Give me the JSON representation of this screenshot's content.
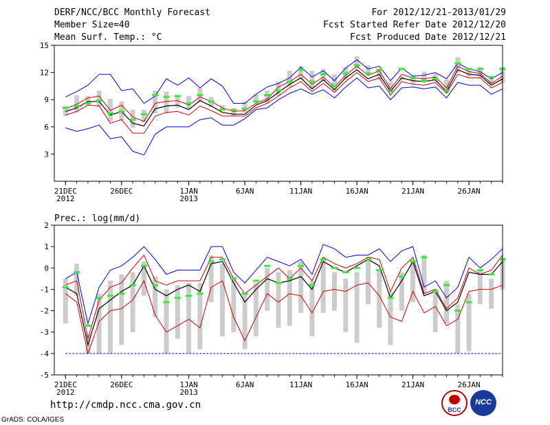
{
  "header": {
    "title": "DERF/NCC/BCC Monthly Forecast",
    "member_size": "Member Size=40",
    "variable": "Mean Surf. Temp.: °C",
    "forecast_period": "For 2012/12/21-2013/01/29",
    "fcst_started": "Fcst Started Refer Date 2012/12/20",
    "fcst_produced": "Fcst Produced Date 2012/12/21"
  },
  "footer": {
    "url": "http://cmdp.ncc.cma.gov.cn",
    "grads": "GrADS: COLA/IGES",
    "logo_bcc": "BCC",
    "logo_ncc": "NCC"
  },
  "colors": {
    "mean": "#000000",
    "envelope": "#0000dd",
    "spread": "#d00000",
    "observed": "#33ee33",
    "bars": "#cccccc",
    "baseline": "#0000aa"
  },
  "chart_data": [
    {
      "type": "line",
      "title": "Mean Surf. Temp.: °C",
      "x_tick_labels": [
        "21DEC\n2012",
        "26DEC",
        "1JAN\n2013",
        "6JAN",
        "11JAN",
        "16JAN",
        "21JAN",
        "26JAN"
      ],
      "x_tick_days": [
        1,
        6,
        12,
        17,
        22,
        27,
        32,
        37
      ],
      "xlim": [
        0,
        40
      ],
      "ylim": [
        0,
        15
      ],
      "y_ticks": [
        3,
        6,
        9,
        12,
        15
      ],
      "days": [
        1,
        2,
        3,
        4,
        5,
        6,
        7,
        8,
        9,
        10,
        11,
        12,
        13,
        14,
        15,
        16,
        17,
        18,
        19,
        20,
        21,
        22,
        23,
        24,
        25,
        26,
        27,
        28,
        29,
        30,
        31,
        32,
        33,
        34,
        35,
        36,
        37,
        38,
        39,
        40
      ],
      "series": [
        {
          "name": "ensemble max",
          "color": "#0000dd",
          "values": [
            9.3,
            9.9,
            10.6,
            11.8,
            11.8,
            10.0,
            10.2,
            8.6,
            9.4,
            11.3,
            10.6,
            11.4,
            10.3,
            11.3,
            10.5,
            8.6,
            8.6,
            9.6,
            10.4,
            10.8,
            11.4,
            12.6,
            11.5,
            12.2,
            11.1,
            12.5,
            13.4,
            12.4,
            12.7,
            11.1,
            12.5,
            11.6,
            11.7,
            12.0,
            11.3,
            13.0,
            12.4,
            12.1,
            11.3,
            12.0
          ]
        },
        {
          "name": "ensemble min",
          "color": "#0000dd",
          "values": [
            5.9,
            5.5,
            5.8,
            6.2,
            4.7,
            4.9,
            3.3,
            2.9,
            5.2,
            6.0,
            6.0,
            6.0,
            6.8,
            7.0,
            6.2,
            6.2,
            6.9,
            7.9,
            8.1,
            9.0,
            9.7,
            10.2,
            9.6,
            10.1,
            9.2,
            10.4,
            11.4,
            10.3,
            10.5,
            9.0,
            10.3,
            10.4,
            10.2,
            10.4,
            9.2,
            10.9,
            10.6,
            10.6,
            9.6,
            10.2
          ]
        },
        {
          "name": "spread upper",
          "color": "#d00000",
          "values": [
            8.0,
            8.5,
            9.2,
            9.4,
            7.8,
            8.4,
            7.1,
            6.6,
            8.6,
            8.8,
            8.9,
            8.4,
            9.3,
            8.8,
            8.1,
            7.7,
            7.8,
            8.6,
            9.1,
            10.4,
            11.0,
            11.8,
            10.7,
            11.5,
            10.4,
            11.7,
            12.7,
            11.7,
            12.2,
            10.2,
            11.8,
            11.4,
            11.3,
            11.5,
            10.3,
            12.7,
            12.1,
            11.9,
            10.8,
            11.6
          ]
        },
        {
          "name": "ensemble mean",
          "color": "#000000",
          "values": [
            7.7,
            8.1,
            8.8,
            8.8,
            7.3,
            7.7,
            6.4,
            6.1,
            8.0,
            8.3,
            8.4,
            7.9,
            8.9,
            8.3,
            7.6,
            7.4,
            7.4,
            8.4,
            8.9,
            9.8,
            10.7,
            11.4,
            10.2,
            11.2,
            10.1,
            11.4,
            12.3,
            11.3,
            11.8,
            9.9,
            11.4,
            11.1,
            11.0,
            11.2,
            9.9,
            12.3,
            11.8,
            11.7,
            10.6,
            11.3
          ]
        },
        {
          "name": "spread lower",
          "color": "#d00000",
          "values": [
            7.3,
            7.7,
            8.4,
            8.3,
            6.4,
            6.8,
            5.3,
            5.3,
            7.2,
            7.6,
            7.7,
            7.3,
            8.3,
            7.8,
            7.2,
            7.2,
            7.2,
            8.1,
            8.6,
            9.4,
            10.3,
            11.0,
            9.9,
            10.8,
            9.8,
            11.0,
            12.0,
            11.0,
            11.4,
            9.5,
            11.0,
            10.7,
            10.6,
            10.9,
            9.7,
            11.8,
            11.4,
            11.4,
            10.3,
            10.9
          ]
        },
        {
          "name": "observed",
          "color": "#33ee33",
          "values": [
            8.1,
            8.3,
            8.6,
            8.9,
            7.5,
            7.7,
            6.8,
            7.4,
            9.5,
            9.3,
            9.4,
            8.6,
            9.5,
            8.8,
            7.9,
            7.9,
            8.0,
            8.8,
            9.5,
            10.0,
            11.0,
            12.3,
            11.0,
            11.8,
            10.5,
            11.9,
            12.8,
            11.9,
            12.3,
            9.9,
            12.4,
            11.4,
            11.1,
            11.3,
            10.0,
            13.0,
            12.4,
            12.4,
            11.5,
            12.4
          ]
        }
      ],
      "obs_bars": [
        [
          7.2,
          8.3
        ],
        [
          7.6,
          9.5
        ],
        [
          8.4,
          9.4
        ],
        [
          8.2,
          10.0
        ],
        [
          6.6,
          9.1
        ],
        [
          6.7,
          8.8
        ],
        [
          5.9,
          7.9
        ],
        [
          6.5,
          7.9
        ],
        [
          7.5,
          10.0
        ],
        [
          7.5,
          9.9
        ],
        [
          8.1,
          9.4
        ],
        [
          8.0,
          9.4
        ],
        [
          8.8,
          10.3
        ],
        [
          8.2,
          9.3
        ],
        [
          7.8,
          8.4
        ],
        [
          7.2,
          8.0
        ],
        [
          7.6,
          8.8
        ],
        [
          8.7,
          9.6
        ],
        [
          8.6,
          10.0
        ],
        [
          9.4,
          11.0
        ],
        [
          10.4,
          12.2
        ],
        [
          11.2,
          12.7
        ],
        [
          10.3,
          12.2
        ],
        [
          11.0,
          12.4
        ],
        [
          9.9,
          11.8
        ],
        [
          11.2,
          12.6
        ],
        [
          12.4,
          13.8
        ],
        [
          11.7,
          12.8
        ],
        [
          11.2,
          12.3
        ],
        [
          9.8,
          11.0
        ],
        [
          11.2,
          11.6
        ],
        [
          10.7,
          11.7
        ],
        [
          10.9,
          12.1
        ],
        [
          11.0,
          11.9
        ],
        [
          9.8,
          11.2
        ],
        [
          12.0,
          13.7
        ],
        [
          11.5,
          12.5
        ],
        [
          11.4,
          12.6
        ],
        [
          10.7,
          11.6
        ],
        [
          10.9,
          12.6
        ]
      ]
    },
    {
      "type": "line",
      "title": "Prec.: log(mm/d)",
      "x_tick_labels": [
        "21DEC\n2012",
        "26DEC",
        "1JAN\n2013",
        "6JAN",
        "11JAN",
        "16JAN",
        "21JAN",
        "26JAN"
      ],
      "x_tick_days": [
        1,
        6,
        12,
        17,
        22,
        27,
        32,
        37
      ],
      "xlim": [
        0,
        40
      ],
      "ylim": [
        -5,
        2
      ],
      "y_ticks": [
        -5,
        -4,
        -3,
        -2,
        -1,
        0,
        1,
        2
      ],
      "baseline": -4,
      "days": [
        1,
        2,
        3,
        4,
        5,
        6,
        7,
        8,
        9,
        10,
        11,
        12,
        13,
        14,
        15,
        16,
        17,
        18,
        19,
        20,
        21,
        22,
        23,
        24,
        25,
        26,
        27,
        28,
        29,
        30,
        31,
        32,
        33,
        34,
        35,
        36,
        37,
        38,
        39,
        40
      ],
      "series": [
        {
          "name": "ensemble max",
          "color": "#0000dd",
          "values": [
            -0.5,
            -0.2,
            -2.6,
            -0.9,
            -0.1,
            0.1,
            0.5,
            1.0,
            0.4,
            -0.3,
            -0.1,
            -0.1,
            -0.1,
            1.0,
            1.0,
            -0.2,
            -0.7,
            -0.1,
            0.5,
            0.3,
            0.1,
            0.4,
            -0.3,
            1.1,
            0.9,
            0.5,
            0.6,
            0.6,
            0.9,
            0.3,
            0.8,
            1.0,
            -0.9,
            -0.6,
            -1.4,
            -0.9,
            0.5,
            0.0,
            0.4,
            0.9
          ]
        },
        {
          "name": "spread upper",
          "color": "#d00000",
          "values": [
            -0.8,
            -0.6,
            -3.3,
            -1.5,
            -0.9,
            -0.7,
            0.0,
            0.6,
            -0.6,
            -0.8,
            -0.6,
            -0.6,
            -0.6,
            0.5,
            0.5,
            -0.5,
            -1.2,
            -0.8,
            -0.4,
            0.0,
            -0.5,
            0.0,
            -0.6,
            0.5,
            0.2,
            0.0,
            0.2,
            0.5,
            0.4,
            -1.1,
            0.0,
            0.5,
            -1.2,
            -1.0,
            -1.9,
            -1.4,
            0.0,
            -0.3,
            -0.1,
            0.6
          ]
        },
        {
          "name": "ensemble mean",
          "color": "#000000",
          "values": [
            -0.9,
            -1.2,
            -3.6,
            -1.9,
            -1.5,
            -1.1,
            -0.8,
            0.1,
            -1.0,
            -1.3,
            -1.0,
            -0.8,
            -1.1,
            0.2,
            0.3,
            -0.7,
            -1.6,
            -1.0,
            -0.5,
            -0.7,
            -0.6,
            -0.4,
            -1.0,
            0.3,
            0.0,
            -0.2,
            0.1,
            0.4,
            0.1,
            -1.4,
            -0.6,
            0.3,
            -1.3,
            -1.1,
            -2.0,
            -1.6,
            -0.2,
            -0.3,
            -0.3,
            0.3
          ]
        },
        {
          "name": "spread lower",
          "color": "#d00000",
          "values": [
            -1.2,
            -1.6,
            -4.0,
            -2.5,
            -2.0,
            -1.9,
            -1.5,
            -0.6,
            -2.2,
            -3.0,
            -2.7,
            -2.4,
            -2.8,
            -0.9,
            -0.6,
            -2.3,
            -3.4,
            -2.3,
            -1.2,
            -1.6,
            -1.2,
            -1.3,
            -2.1,
            -1.1,
            -1.0,
            -1.1,
            -0.8,
            -0.7,
            -1.3,
            -2.3,
            -2.5,
            -1.1,
            -2.1,
            -1.8,
            -2.7,
            -2.4,
            -1.1,
            -1.0,
            -1.0,
            -0.8
          ]
        },
        {
          "name": "observed",
          "color": "#33ee33",
          "values": [
            -0.9,
            -0.2,
            -2.7,
            -1.4,
            -1.3,
            -1.2,
            -0.8,
            0.1,
            -0.8,
            -1.6,
            -1.4,
            -1.3,
            -1.2,
            0.3,
            0.4,
            -0.5,
            -1.2,
            -0.6,
            0.1,
            -0.7,
            -0.5,
            0.1,
            -0.8,
            0.4,
            0.0,
            -0.2,
            0.0,
            0.4,
            -0.1,
            -1.4,
            -0.4,
            0.3,
            0.5,
            -1.1,
            -0.8,
            -2.0,
            -1.6,
            -0.1,
            -0.3,
            0.4
          ]
        }
      ],
      "obs_bars": [
        [
          -2.6,
          -0.5
        ],
        [
          -1.3,
          0.2
        ],
        [
          -4.0,
          -3.1
        ],
        [
          -4.0,
          -1.2
        ],
        [
          -4.0,
          -0.6
        ],
        [
          -3.6,
          -0.3
        ],
        [
          -3.0,
          -0.2
        ],
        [
          -1.3,
          0.3
        ],
        [
          -2.3,
          -0.4
        ],
        [
          -4.0,
          -1.0
        ],
        [
          -3.3,
          -0.8
        ],
        [
          -4.0,
          -0.7
        ],
        [
          -3.8,
          -0.7
        ],
        [
          -1.6,
          0.6
        ],
        [
          -3.2,
          0.2
        ],
        [
          -3.0,
          -0.4
        ],
        [
          -3.8,
          -1.2
        ],
        [
          -3.2,
          -0.7
        ],
        [
          -2.0,
          0.0
        ],
        [
          -2.8,
          -0.2
        ],
        [
          -2.7,
          -0.1
        ],
        [
          -2.1,
          0.3
        ],
        [
          -3.2,
          -0.6
        ],
        [
          -2.1,
          0.5
        ],
        [
          -2.0,
          -0.2
        ],
        [
          -3.0,
          -0.5
        ],
        [
          -3.5,
          -0.2
        ],
        [
          -1.7,
          0.5
        ],
        [
          -2.8,
          -0.1
        ],
        [
          -3.6,
          -1.1
        ],
        [
          -2.0,
          -0.2
        ],
        [
          -1.6,
          0.4
        ],
        [
          -1.2,
          0.6
        ],
        [
          -3.0,
          -1.0
        ],
        [
          -2.6,
          -0.6
        ],
        [
          -4.0,
          -1.7
        ],
        [
          -3.9,
          -1.2
        ],
        [
          -1.7,
          -0.1
        ],
        [
          -1.9,
          -0.5
        ],
        [
          -1.0,
          0.5
        ]
      ]
    }
  ]
}
